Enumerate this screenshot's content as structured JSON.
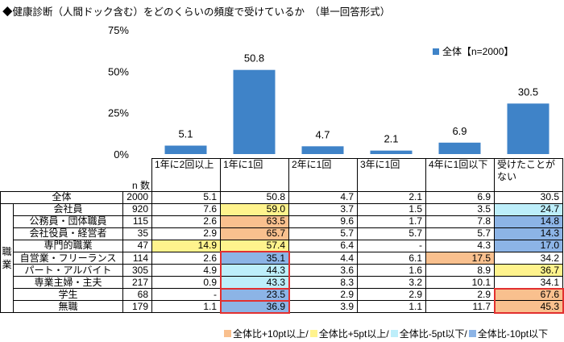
{
  "title": "◆健康診断（人間ドック含む）をどのくらいの頻度で受けているか　（単一回答形式）",
  "chart_data": {
    "type": "bar",
    "categories": [
      "1年に2回以上",
      "1年に1回",
      "2年に1回",
      "3年に1回",
      "4年に1回以下",
      "受けたことがない"
    ],
    "series": [
      {
        "name": "全体【n=2000】",
        "values": [
          5.1,
          50.8,
          4.7,
          2.1,
          6.9,
          30.5
        ],
        "color": "#3f83c8"
      }
    ],
    "y_ticks": [
      "0%",
      "25%",
      "50%",
      "75%"
    ],
    "ylim": [
      0,
      75
    ],
    "legend_position": "top-right",
    "grid": false
  },
  "table": {
    "n_header": "n 数",
    "column_headers": [
      "1年に2回以上",
      "1年に1回",
      "2年に1回",
      "3年に1回",
      "4年に1回以下",
      "受けたことが\nない"
    ],
    "total_row": {
      "label": "全体",
      "n": "2000",
      "values": [
        "5.1",
        "50.8",
        "4.7",
        "2.1",
        "6.9",
        "30.5"
      ]
    },
    "group_label": "職業",
    "rows": [
      {
        "label": "会社員",
        "n": "920",
        "values": [
          "7.6",
          "59.0",
          "3.7",
          "1.5",
          "3.5",
          "24.7"
        ],
        "hl": [
          "",
          "yellow",
          "",
          "",
          "",
          "cyan"
        ]
      },
      {
        "label": "公務員・団体職員",
        "n": "115",
        "values": [
          "2.6",
          "63.5",
          "9.6",
          "1.7",
          "7.8",
          "14.8"
        ],
        "hl": [
          "",
          "orange",
          "",
          "",
          "",
          "blue"
        ]
      },
      {
        "label": "会社役員・経営者",
        "n": "35",
        "values": [
          "2.9",
          "65.7",
          "5.7",
          "5.7",
          "5.7",
          "14.3"
        ],
        "hl": [
          "",
          "orange",
          "",
          "",
          "",
          "blue"
        ]
      },
      {
        "label": "専門的職業",
        "n": "47",
        "values": [
          "14.9",
          "57.4",
          "6.4",
          "-",
          "4.3",
          "17.0"
        ],
        "hl": [
          "yellow",
          "yellow",
          "",
          "",
          "",
          "blue"
        ]
      },
      {
        "label": "自営業・フリーランス",
        "n": "114",
        "values": [
          "2.6",
          "35.1",
          "4.4",
          "6.1",
          "17.5",
          "34.2"
        ],
        "hl": [
          "",
          "blue",
          "",
          "",
          "orange",
          ""
        ]
      },
      {
        "label": "パート・アルバイト",
        "n": "305",
        "values": [
          "4.9",
          "44.3",
          "3.6",
          "1.6",
          "8.9",
          "36.7"
        ],
        "hl": [
          "",
          "cyan",
          "",
          "",
          "",
          "yellow"
        ]
      },
      {
        "label": "専業主婦・主夫",
        "n": "217",
        "values": [
          "0.9",
          "43.3",
          "8.3",
          "3.2",
          "10.1",
          "34.1"
        ],
        "hl": [
          "",
          "cyan",
          "",
          "",
          "",
          ""
        ]
      },
      {
        "label": "学生",
        "n": "68",
        "values": [
          "-",
          "23.5",
          "2.9",
          "2.9",
          "2.9",
          "67.6"
        ],
        "hl": [
          "",
          "blue",
          "",
          "",
          "",
          "orange"
        ]
      },
      {
        "label": "無職",
        "n": "179",
        "values": [
          "1.1",
          "36.9",
          "3.9",
          "1.1",
          "11.7",
          "45.3"
        ],
        "hl": [
          "",
          "blue",
          "",
          "",
          "",
          "orange"
        ]
      }
    ]
  },
  "highlight_colors": {
    "orange": "#f9c08e",
    "yellow": "#fff38d",
    "cyan": "#bdeefa",
    "blue": "#8cb4e6",
    "redbox": "#e23030"
  },
  "footer": {
    "legend": [
      {
        "color": "#f9c08e",
        "label": "全体比+10pt以上/"
      },
      {
        "color": "#fff38d",
        "label": "全体比+5pt以上/"
      },
      {
        "color": "#bdeefa",
        "label": "全体比-5pt以下/"
      },
      {
        "color": "#8cb4e6",
        "label": "全体比-10pt以下"
      }
    ],
    "unit": "(%)"
  }
}
